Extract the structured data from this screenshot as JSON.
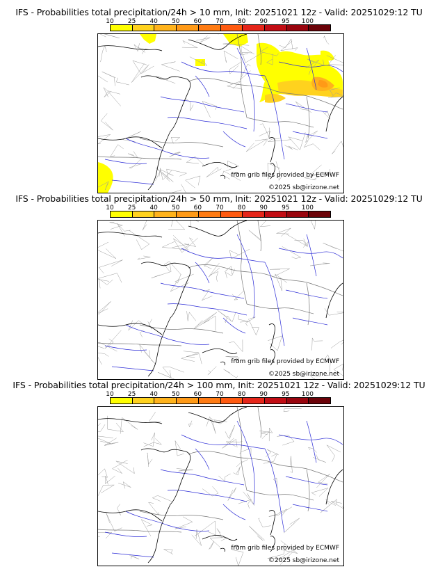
{
  "colorbar": {
    "ticks": [
      "10",
      "25",
      "40",
      "50",
      "60",
      "70",
      "80",
      "90",
      "95",
      "100"
    ],
    "colors": [
      "#ffff00",
      "#ffd21e",
      "#ffb31c",
      "#ff9a17",
      "#ff7b13",
      "#ff5a10",
      "#e6261a",
      "#c20d14",
      "#99050e",
      "#6b0208"
    ]
  },
  "panels": [
    {
      "title": "IFS - Probabilities total precipitation/24h > 10 mm, Init: 20251021 12z - Valid: 20251029:12 TU",
      "credit_source": "from grib files provided by ECMWF",
      "credit_copyright": "©2025 sb@irizone.net",
      "has_precip": true
    },
    {
      "title": "IFS - Probabilities total precipitation/24h > 50 mm, Init: 20251021 12z - Valid: 20251029:12 TU",
      "credit_source": "from grib files provided by ECMWF",
      "credit_copyright": "©2025 sb@irizone.net",
      "has_precip": false
    },
    {
      "title": "IFS - Probabilities total precipitation/24h > 100 mm, Init: 20251021 12z - Valid: 20251029:12 TU",
      "credit_source": "from grib files provided by ECMWF",
      "credit_copyright": "©2025 sb@irizone.net",
      "has_precip": false
    }
  ]
}
